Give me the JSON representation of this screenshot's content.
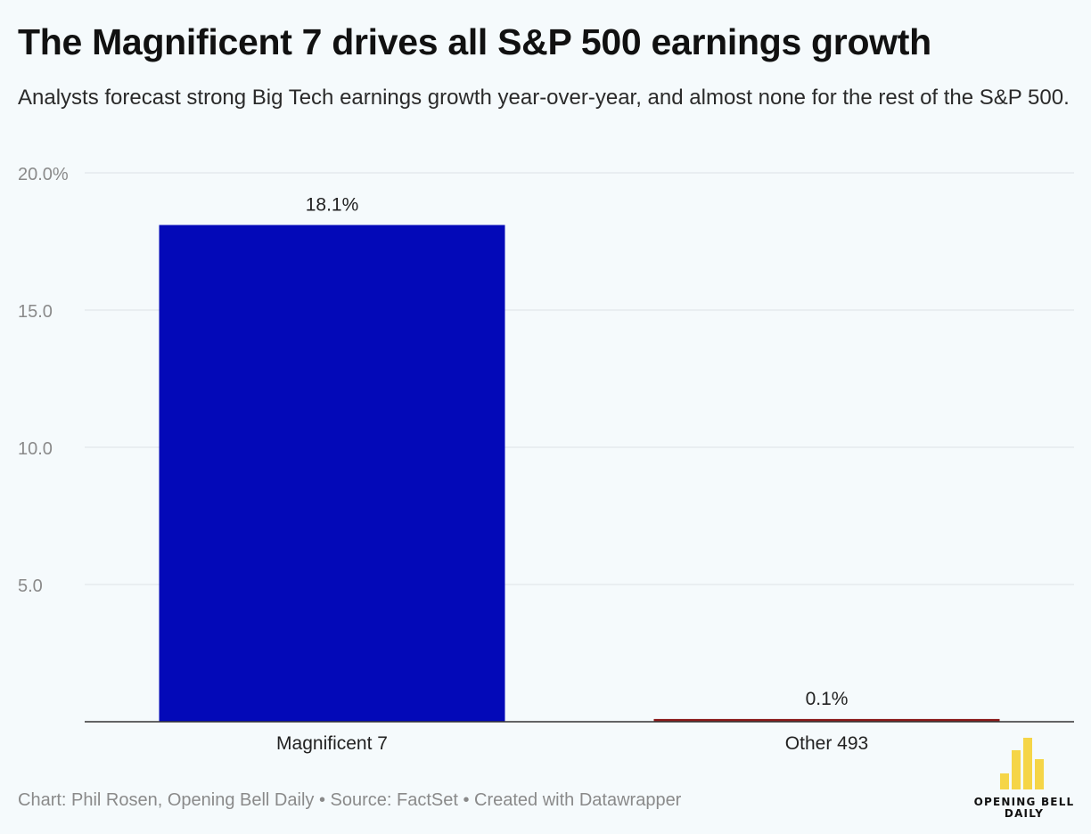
{
  "header": {
    "title": "The Magnificent 7 drives all S&P 500 earnings growth",
    "subtitle": "Analysts forecast strong Big Tech earnings growth year-over-year, and almost none for the rest of the S&P 500."
  },
  "chart_data": {
    "type": "bar",
    "categories": [
      "Magnificent 7",
      "Other 493"
    ],
    "values": [
      18.1,
      0.1
    ],
    "value_labels": [
      "18.1%",
      "0.1%"
    ],
    "bar_colors": [
      "#0309b8",
      "#8b1a1a"
    ],
    "ylim": [
      0,
      20
    ],
    "yticks": [
      5,
      10,
      15,
      20
    ],
    "ytick_labels": [
      "5.0",
      "10.0",
      "15.0",
      "20.0%"
    ],
    "title": "The Magnificent 7 drives all S&P 500 earnings growth",
    "xlabel": "",
    "ylabel": "",
    "grid": true
  },
  "footer": {
    "note": "Chart: Phil Rosen, Opening Bell Daily • Source: FactSet • Created with Datawrapper"
  },
  "logo": {
    "line1": "OPENING BELL",
    "line2": "DAILY",
    "color": "#f5d547"
  },
  "colors": {
    "background": "#f5fafc",
    "gridline": "#dde3e6",
    "axis": "#333333",
    "tick_text": "#8a8a8a"
  }
}
